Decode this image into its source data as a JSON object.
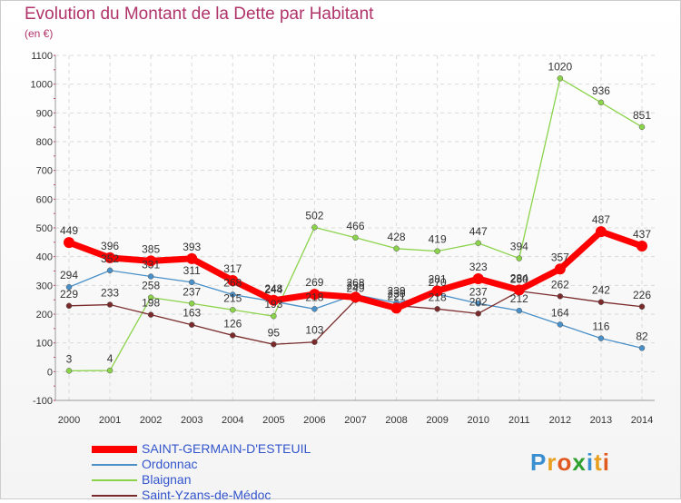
{
  "title": "Evolution du Montant de la Dette par Habitant",
  "unit": "(en €)",
  "logo": "Proxiti",
  "chart_data": {
    "type": "line",
    "title": "Evolution du Montant de la Dette par Habitant",
    "ylabel": "(en €)",
    "xlabel": "",
    "x": [
      "2000",
      "2001",
      "2002",
      "2003",
      "2004",
      "2005",
      "2006",
      "2007",
      "2008",
      "2009",
      "2010",
      "2011",
      "2012",
      "2013",
      "2014"
    ],
    "ylim": [
      -100,
      1100
    ],
    "yticks": [
      -100,
      0,
      100,
      200,
      300,
      400,
      500,
      600,
      700,
      800,
      900,
      1000,
      1100
    ],
    "grid": true,
    "legend_position": "bottom-left",
    "series": [
      {
        "name": "SAINT-GERMAIN-D'ESTEUIL",
        "color": "#ff0000",
        "values": [
          449,
          396,
          385,
          393,
          317,
          248,
          269,
          259,
          221,
          281,
          323,
          284,
          357,
          487,
          437
        ]
      },
      {
        "name": "Ordonnac",
        "color": "#4a90c8",
        "values": [
          294,
          352,
          331,
          311,
          268,
          244,
          218,
          268,
          239,
          270,
          237,
          212,
          164,
          116,
          82
        ]
      },
      {
        "name": "Blaignan",
        "color": "#8bd34a",
        "values": [
          3,
          4,
          258,
          237,
          215,
          193,
          502,
          466,
          428,
          419,
          447,
          394,
          1020,
          936,
          851
        ]
      },
      {
        "name": "Saint-Yzans-de-Médoc",
        "color": "#7a2a2a",
        "values": [
          229,
          233,
          198,
          163,
          126,
          95,
          103,
          249,
          230,
          218,
          202,
          280,
          262,
          242,
          226
        ]
      }
    ],
    "data_labels": [
      [
        "449",
        "396",
        "385",
        "393",
        "317",
        "248",
        "269",
        "259",
        "221",
        "281",
        "323",
        "284",
        "357",
        "487",
        "437"
      ],
      [
        "294",
        "352",
        "331",
        "311",
        "268",
        "244",
        "218",
        "268",
        "239",
        "270",
        "237",
        "212",
        "164",
        "116",
        "82"
      ],
      [
        "3",
        "4",
        "258",
        "237",
        "215",
        "193",
        "502",
        "466",
        "428",
        "419",
        "447",
        "394",
        "1020",
        "936",
        "851"
      ],
      [
        "229",
        "233",
        "198",
        "163",
        "126",
        "95",
        "103",
        "249",
        "230",
        "218",
        "202",
        "280",
        "262",
        "242",
        "226"
      ]
    ]
  }
}
